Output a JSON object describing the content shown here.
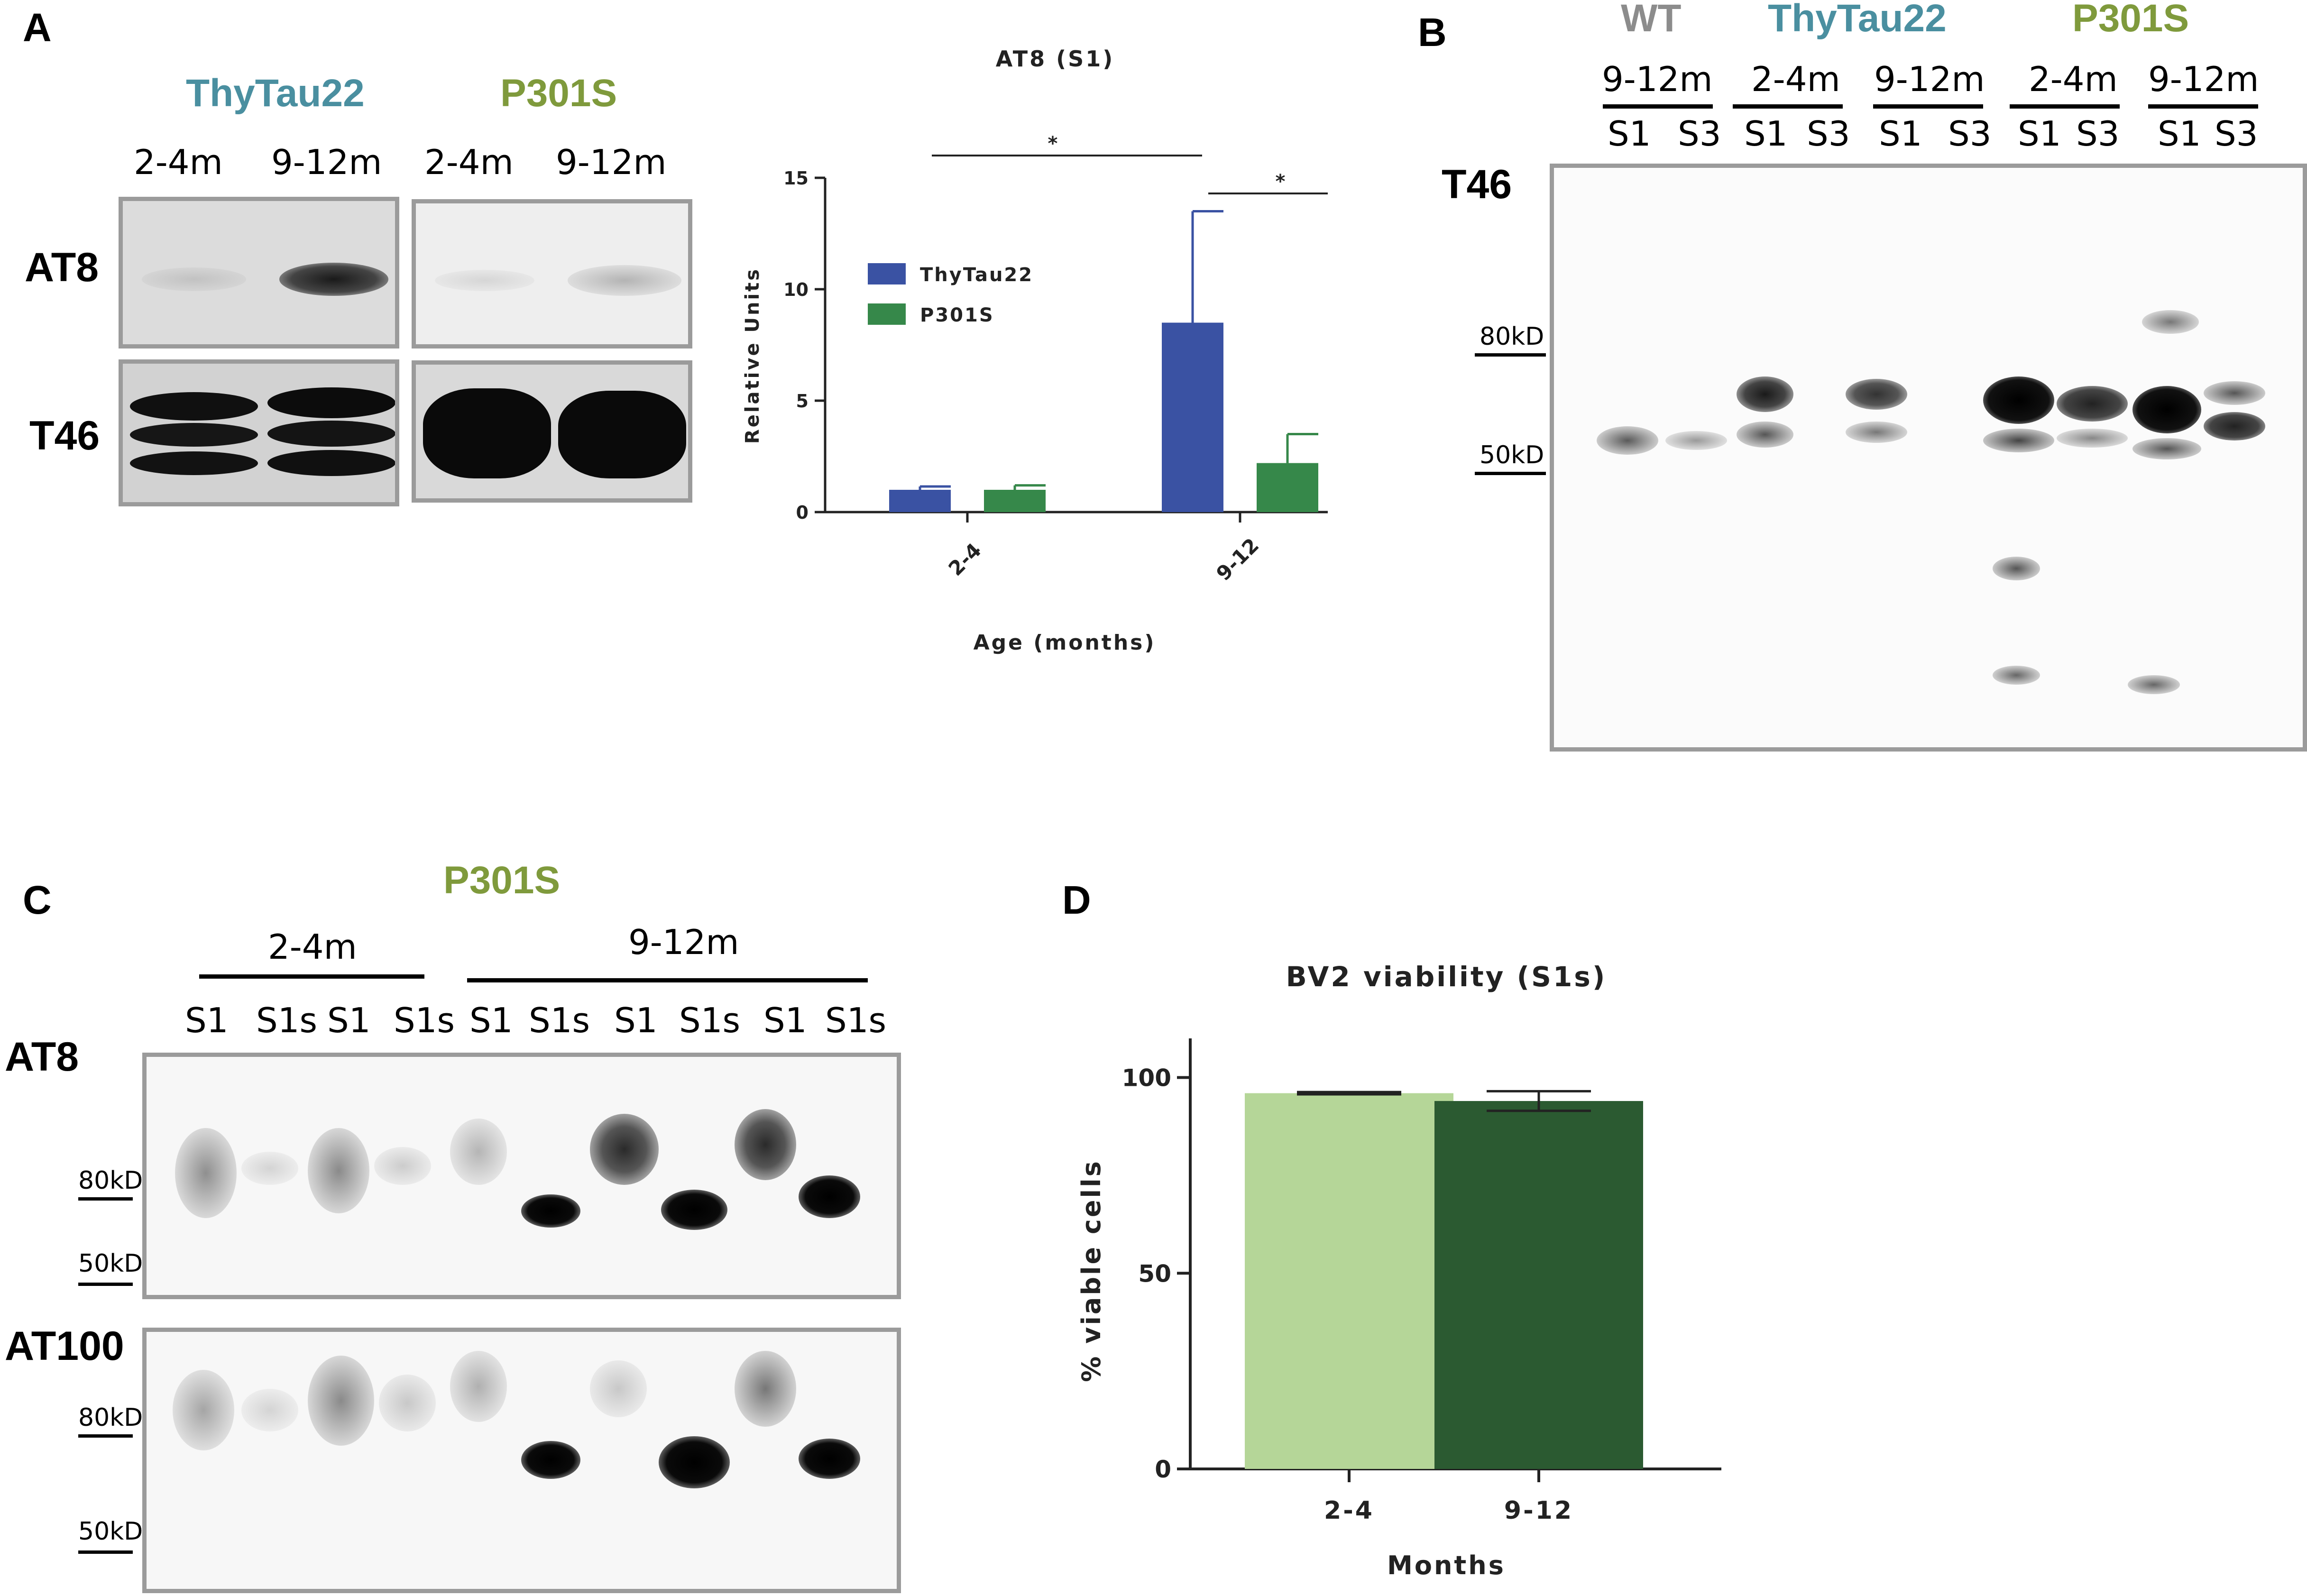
{
  "panels": {
    "a": "A",
    "b": "B",
    "c": "C",
    "d": "D"
  },
  "panel_a": {
    "groups": [
      "ThyTau22",
      "P301S"
    ],
    "lanes": [
      "2-4m",
      "9-12m",
      "2-4m",
      "9-12m"
    ],
    "antibodies": [
      "AT8",
      "T46"
    ]
  },
  "panel_b": {
    "groups": [
      "WT",
      "ThyTau22",
      "P301S"
    ],
    "ages": [
      "9-12m",
      "2-4m",
      "9-12m",
      "2-4m",
      "9-12m"
    ],
    "lanes": [
      "S1",
      "S3",
      "S1",
      "S3",
      "S1",
      "S3",
      "S1",
      "S3",
      "S1",
      "S3"
    ],
    "antibody": "T46",
    "markers": [
      "80kD",
      "50kD"
    ]
  },
  "panel_c": {
    "group": "P301S",
    "ages": [
      "2-4m",
      "9-12m"
    ],
    "lanes": [
      "S1",
      "S1s",
      "S1",
      "S1s",
      "S1",
      "S1s",
      "S1",
      "S1s",
      "S1",
      "S1s"
    ],
    "antibodies": [
      "AT8",
      "AT100"
    ],
    "markers": [
      "80kD",
      "50kD",
      "80kD",
      "50kD"
    ]
  },
  "colors": {
    "thytau22": "#4a8fa0",
    "p301s": "#7f9a3c",
    "wt": "#8c8c8c",
    "bar_blue": "#3a52a3",
    "bar_green": "#36884a",
    "bar_light_green": "#b5d698",
    "bar_dark_green": "#2b5a31"
  },
  "chart_data": [
    {
      "type": "bar",
      "title": "AT8 (S1)",
      "xlabel": "Age (months)",
      "ylabel": "Relative Units",
      "categories": [
        "2-4",
        "9-12"
      ],
      "ylim": [
        0,
        15
      ],
      "yticks": [
        "0",
        "5",
        "10",
        "15"
      ],
      "series": [
        {
          "name": "ThyTau22",
          "values": [
            1.0,
            8.5
          ],
          "errors": [
            0.15,
            5.0
          ],
          "color": "#3a52a3"
        },
        {
          "name": "P301S",
          "values": [
            1.0,
            2.2
          ],
          "errors": [
            0.2,
            1.3
          ],
          "color": "#36884a"
        }
      ],
      "significance": [
        "*",
        "*"
      ],
      "legend": "upper-left"
    },
    {
      "type": "bar",
      "title": "BV2 viability (S1s)",
      "xlabel": "Months",
      "ylabel": "% viable cells",
      "categories": [
        "2-4",
        "9-12"
      ],
      "ylim": [
        0,
        110
      ],
      "yticks": [
        "0",
        "50",
        "100"
      ],
      "values": [
        96,
        94
      ],
      "errors": [
        0.3,
        2.5
      ],
      "colors": [
        "#b5d698",
        "#2b5a31"
      ]
    }
  ]
}
